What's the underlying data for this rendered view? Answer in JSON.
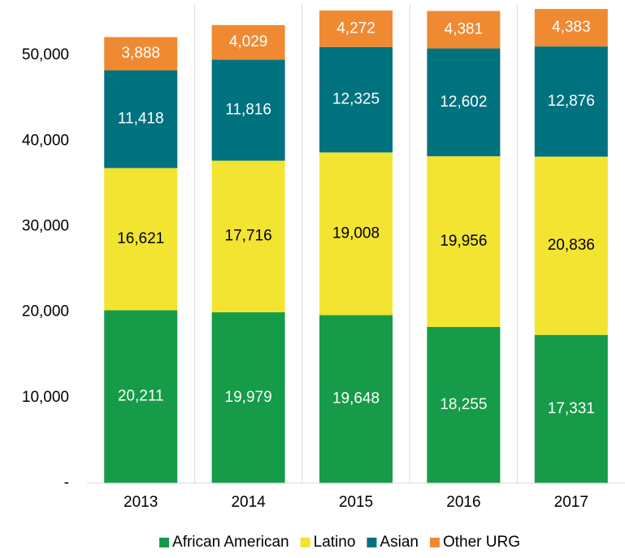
{
  "chart_data": {
    "type": "stacked_bar",
    "categories": [
      "2013",
      "2014",
      "2015",
      "2016",
      "2017"
    ],
    "series": [
      {
        "name": "African American",
        "color": "#169b48",
        "label_color": "#ffffff",
        "values": [
          20211,
          19979,
          19648,
          18255,
          17331
        ],
        "value_labels": [
          "20,211",
          "19,979",
          "19,648",
          "18,255",
          "17,331"
        ]
      },
      {
        "name": "Latino",
        "color": "#f2e431",
        "label_color": "#000000",
        "values": [
          16621,
          17716,
          19008,
          19956,
          20836
        ],
        "value_labels": [
          "16,621",
          "17,716",
          "19,008",
          "19,956",
          "20,836"
        ]
      },
      {
        "name": "Asian",
        "color": "#00727f",
        "label_color": "#ffffff",
        "values": [
          11418,
          11816,
          12325,
          12602,
          12876
        ],
        "value_labels": [
          "11,418",
          "11,816",
          "12,325",
          "12,602",
          "12,876"
        ]
      },
      {
        "name": "Other URG",
        "color": "#ef8a33",
        "label_color": "#ffffff",
        "values": [
          3888,
          4029,
          4272,
          4381,
          4383
        ],
        "value_labels": [
          "3,888",
          "4,029",
          "4,272",
          "4,381",
          "4,383"
        ]
      }
    ],
    "ylim": [
      0,
      56000
    ],
    "yticks": [
      {
        "value": 0,
        "label": "-"
      },
      {
        "value": 10000,
        "label": "10,000"
      },
      {
        "value": 20000,
        "label": "20,000"
      },
      {
        "value": 30000,
        "label": "30,000"
      },
      {
        "value": 40000,
        "label": "40,000"
      },
      {
        "value": 50000,
        "label": "50,000"
      }
    ],
    "legend": "bottom"
  }
}
